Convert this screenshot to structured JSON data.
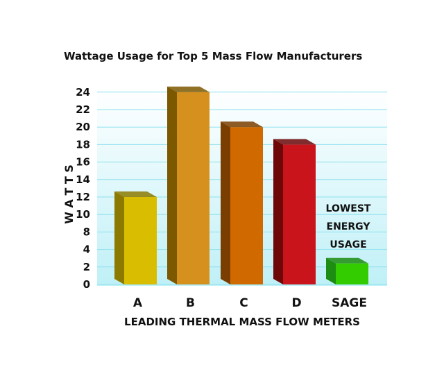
{
  "chart_data": {
    "type": "bar",
    "title": "Wattage Usage for Top 5 Mass Flow Manufacturers",
    "xlabel": "LEADING THERMAL MASS FLOW METERS",
    "ylabel": "W A T T S",
    "y_tick_labels": [
      "0",
      "2",
      "4",
      "8",
      "10",
      "12",
      "14",
      "16",
      "18",
      "20",
      "22",
      "24"
    ],
    "ylim": [
      0,
      24
    ],
    "grid": true,
    "style": "3d",
    "categories": [
      "A",
      "B",
      "C",
      "D",
      "SAGE"
    ],
    "values": [
      12,
      24,
      20,
      18,
      2.4
    ],
    "colors": [
      {
        "front": "#d9bd00",
        "side": "#8c7a00"
      },
      {
        "front": "#d5901e",
        "side": "#7c5800"
      },
      {
        "front": "#d06a00",
        "side": "#7a3e00"
      },
      {
        "front": "#c8141a",
        "side": "#6e0808"
      },
      {
        "front": "#33cc00",
        "side": "#1d8c12"
      }
    ],
    "annotation": [
      "LOWEST",
      "ENERGY",
      "USAGE"
    ],
    "gridline_color": "#8ee0ee",
    "background_gradient": [
      "#ffffff",
      "#bff0f7"
    ]
  }
}
